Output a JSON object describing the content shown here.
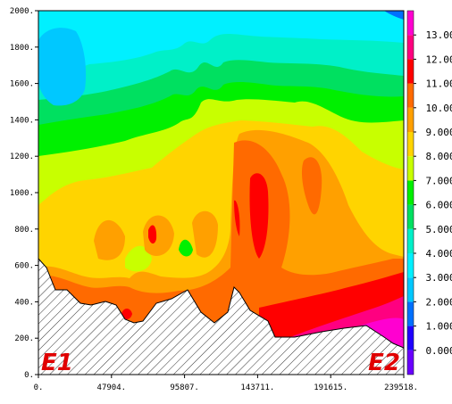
{
  "chart_data": {
    "type": "heatmap",
    "title": "",
    "xlabel": "",
    "ylabel": "",
    "xlim": [
      0,
      239518
    ],
    "ylim": [
      0,
      2000
    ],
    "x_tick_labels": [
      "0.",
      "47904.",
      "95807.",
      "143711.",
      "191615.",
      "239518."
    ],
    "y_tick_labels": [
      "0.",
      "200.",
      "400.",
      "600.",
      "800.",
      "1000.",
      "1200.",
      "1400.",
      "1600.",
      "1800.",
      "2000."
    ],
    "colorbar": {
      "tick_labels": [
        "0.000",
        "1.000",
        "2.000",
        "3.000",
        "4.000",
        "5.000",
        "6.000",
        "7.000",
        "8.000",
        "9.000",
        "10.00",
        "11.00",
        "12.00",
        "13.00"
      ],
      "colors": [
        "#6a00ff",
        "#2000ff",
        "#0070ff",
        "#00c8ff",
        "#00f0ff",
        "#00f0c8",
        "#00e060",
        "#00f000",
        "#c8ff00",
        "#ffd400",
        "#ffa000",
        "#ff6a00",
        "#ff0000",
        "#ff0080",
        "#ff00d0"
      ]
    },
    "terrain_hatched": true,
    "endpoint_labels": [
      "E1",
      "E2"
    ],
    "endpoint_color": "#e00000"
  }
}
